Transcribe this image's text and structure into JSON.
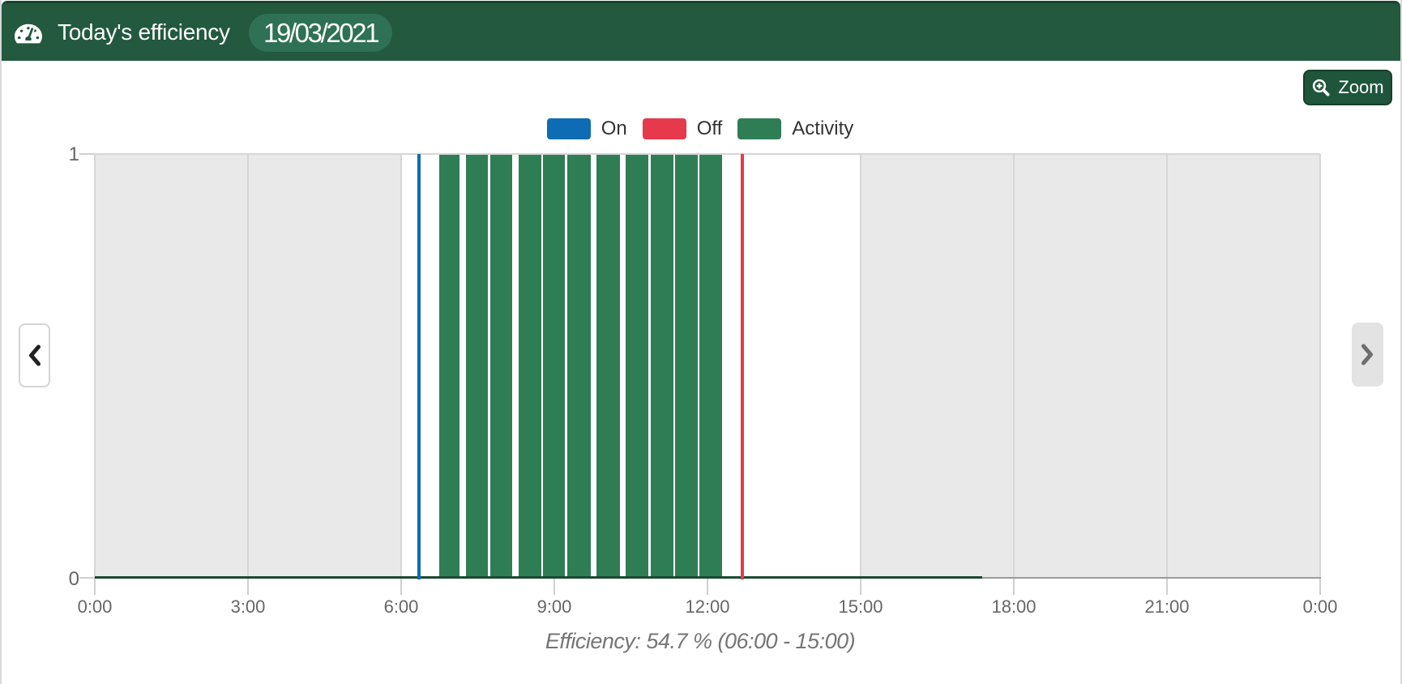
{
  "header": {
    "title": "Today's efficiency",
    "date": "19/03/2021",
    "icon": "tachometer-icon",
    "background_color": "#22593f",
    "badge_color": "#2e7154"
  },
  "toolbar": {
    "zoom_label": "Zoom",
    "zoom_icon": "zoom-in-icon",
    "button_color": "#1e553b"
  },
  "legend": {
    "items": [
      {
        "label": "On",
        "color": "#0e6cb4"
      },
      {
        "label": "Off",
        "color": "#e6394c"
      },
      {
        "label": "Activity",
        "color": "#2f7d55"
      }
    ]
  },
  "nav": {
    "prev_icon": "chevron-left-icon",
    "next_icon": "chevron-right-icon"
  },
  "chart_data": {
    "type": "bar",
    "title": "",
    "xlabel": "",
    "ylabel": "",
    "x_unit": "hour-of-day",
    "x_range_hours": [
      0,
      24
    ],
    "ylim": [
      0,
      1
    ],
    "x_tick_hours": [
      0,
      3,
      6,
      9,
      12,
      15,
      18,
      21,
      24
    ],
    "x_tick_labels": [
      "0:00",
      "3:00",
      "6:00",
      "9:00",
      "12:00",
      "15:00",
      "18:00",
      "21:00",
      "0:00"
    ],
    "y_tick_values": [
      0,
      1
    ],
    "y_tick_labels": [
      "0",
      "1"
    ],
    "grid": true,
    "legend_position": "top-center",
    "plot_bands_hours": [
      {
        "from": 0,
        "to": 6
      },
      {
        "from": 15,
        "to": 24
      }
    ],
    "series": [
      {
        "name": "On",
        "type": "vertical-line",
        "hour": 6.357,
        "color": "#0e6cb4"
      },
      {
        "name": "Off",
        "type": "vertical-line",
        "hour": 12.686,
        "color": "#e6394c"
      },
      {
        "name": "Activity",
        "type": "bar-intervals",
        "value": 1,
        "color": "#2f7d55",
        "intervals_hours": [
          [
            6.744,
            7.148
          ],
          [
            7.267,
            7.706
          ],
          [
            7.748,
            8.173
          ],
          [
            8.305,
            8.746
          ],
          [
            8.778,
            9.214
          ],
          [
            9.259,
            9.719
          ],
          [
            9.821,
            10.279
          ],
          [
            10.398,
            10.848
          ],
          [
            10.886,
            11.329
          ],
          [
            11.368,
            11.811
          ],
          [
            11.849,
            12.292
          ]
        ],
        "zero_line_hours": [
          0,
          17.381
        ],
        "zero_line_color": "#1b4a33"
      }
    ],
    "footer_label": "Efficiency: 54.7 % (06:00 - 15:00)",
    "colors": {
      "plot_band": "#e9e9e9",
      "gridline": "#d6d6d6",
      "axis_line": "#9c9c9c",
      "tick": "#d0d0d0",
      "axis_label": "#666666"
    }
  }
}
